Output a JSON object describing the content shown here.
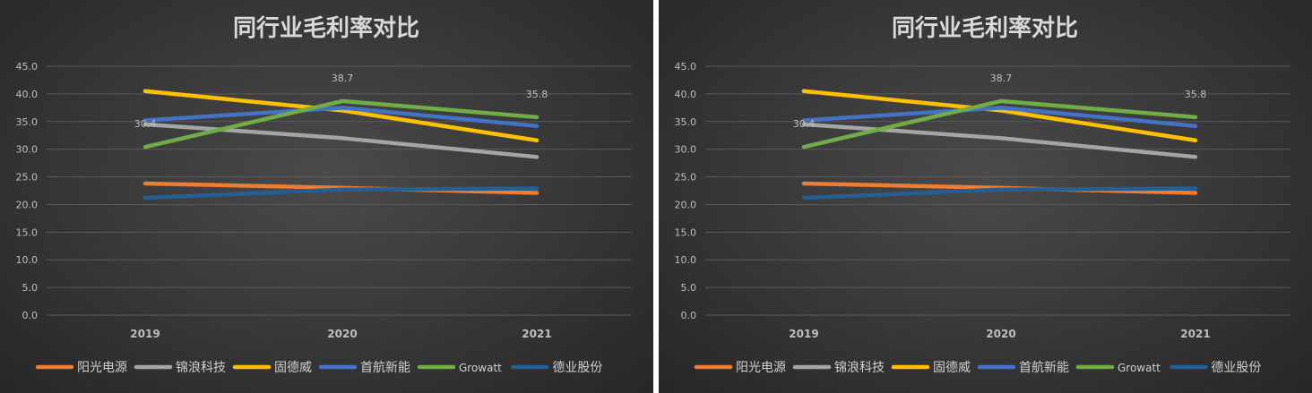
{
  "chart_data": [
    {
      "type": "line",
      "title": "同行业毛利率对比",
      "categories": [
        "2019",
        "2020",
        "2021"
      ],
      "ylim": [
        0,
        45
      ],
      "yticks": [
        "0.0",
        "5.0",
        "10.0",
        "15.0",
        "20.0",
        "25.0",
        "30.0",
        "35.0",
        "40.0",
        "45.0"
      ],
      "grid": true,
      "legend_position": "bottom",
      "series": [
        {
          "name": "阳光电源",
          "color": "#ed7d31",
          "values": [
            23.8,
            23.0,
            22.1
          ]
        },
        {
          "name": "锦浪科技",
          "color": "#a5a5a5",
          "values": [
            34.5,
            32.0,
            28.6
          ]
        },
        {
          "name": "固德威",
          "color": "#ffc000",
          "values": [
            40.5,
            37.0,
            31.6
          ]
        },
        {
          "name": "首航新能",
          "color": "#4472c4",
          "values": [
            35.2,
            37.5,
            34.2
          ]
        },
        {
          "name": "Growatt",
          "color": "#70ad47",
          "values": [
            30.4,
            38.7,
            35.8
          ]
        },
        {
          "name": "德业股份",
          "color": "#255e91",
          "values": [
            21.2,
            22.7,
            22.9
          ]
        }
      ],
      "data_labels": [
        {
          "series": "Growatt",
          "category": "2019",
          "text": "30.4"
        },
        {
          "series": "Growatt",
          "category": "2020",
          "text": "38.7"
        },
        {
          "series": "Growatt",
          "category": "2021",
          "text": "35.8"
        }
      ]
    },
    {
      "type": "line",
      "title": "同行业毛利率对比",
      "categories": [
        "2019",
        "2020",
        "2021"
      ],
      "ylim": [
        0,
        45
      ],
      "yticks": [
        "0.0",
        "5.0",
        "10.0",
        "15.0",
        "20.0",
        "25.0",
        "30.0",
        "35.0",
        "40.0",
        "45.0"
      ],
      "grid": true,
      "legend_position": "bottom",
      "series": [
        {
          "name": "阳光电源",
          "color": "#ed7d31",
          "values": [
            23.8,
            23.0,
            22.1
          ]
        },
        {
          "name": "锦浪科技",
          "color": "#a5a5a5",
          "values": [
            34.5,
            32.0,
            28.6
          ]
        },
        {
          "name": "固德威",
          "color": "#ffc000",
          "values": [
            40.5,
            37.0,
            31.6
          ]
        },
        {
          "name": "首航新能",
          "color": "#4472c4",
          "values": [
            35.2,
            37.5,
            34.2
          ]
        },
        {
          "name": "Growatt",
          "color": "#70ad47",
          "values": [
            30.4,
            38.7,
            35.8
          ]
        },
        {
          "name": "德业股份",
          "color": "#255e91",
          "values": [
            21.2,
            22.7,
            22.9
          ]
        }
      ],
      "data_labels": [
        {
          "series": "Growatt",
          "category": "2019",
          "text": "30.4"
        },
        {
          "series": "Growatt",
          "category": "2020",
          "text": "38.7"
        },
        {
          "series": "Growatt",
          "category": "2021",
          "text": "35.8"
        }
      ]
    }
  ]
}
